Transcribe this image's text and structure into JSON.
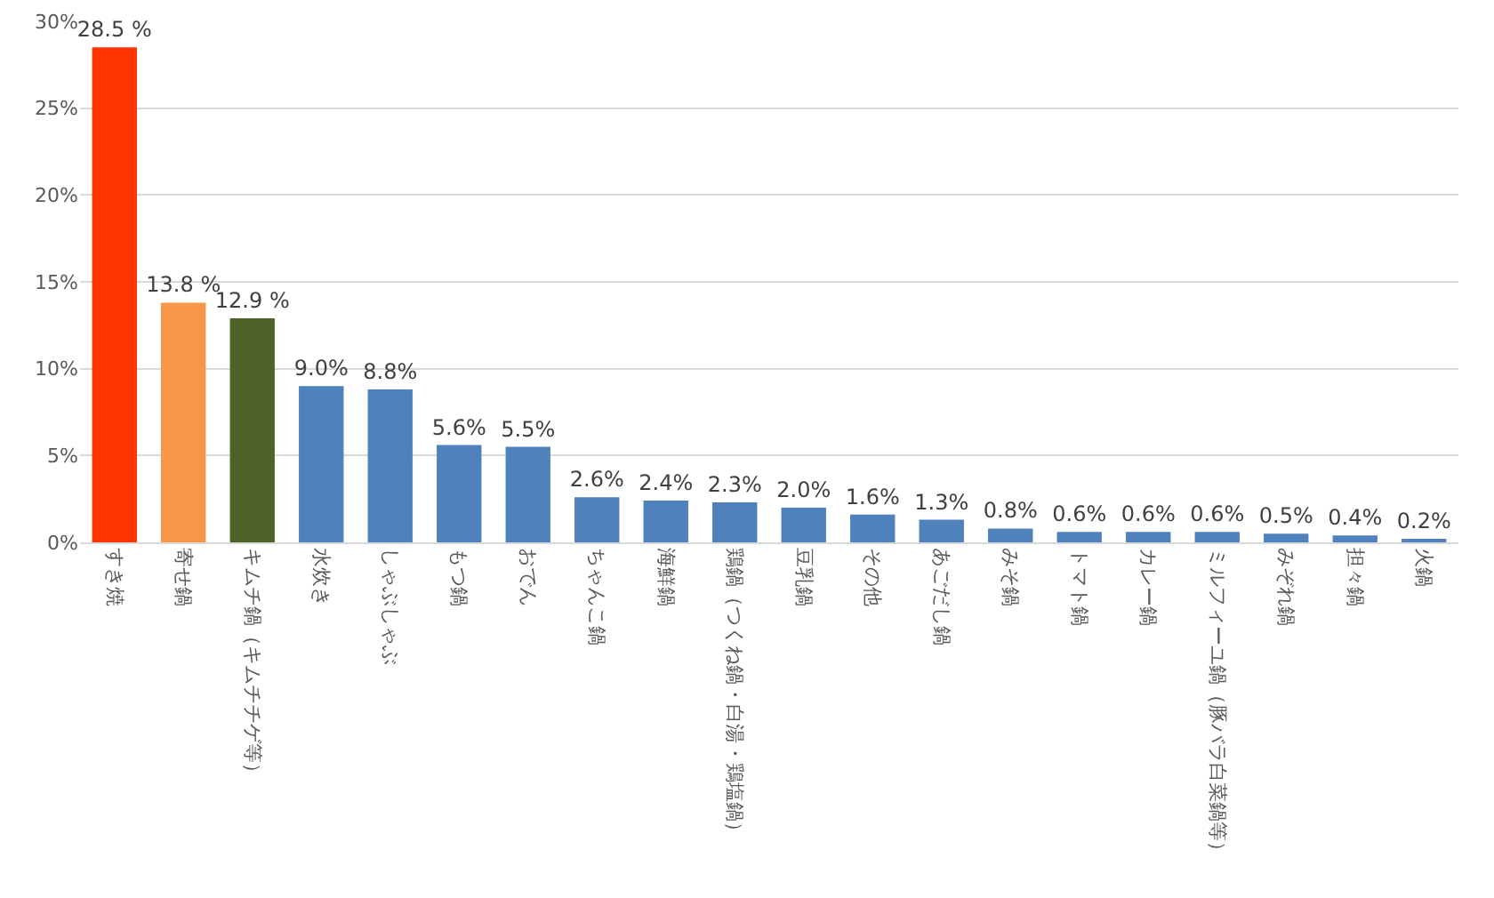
{
  "chart_data": {
    "type": "bar",
    "categories": [
      "すき焼",
      "寄せ鍋",
      "キムチ鍋（キムチチゲ等）",
      "水炊き",
      "しゃぶしゃぶ",
      "もつ鍋",
      "おでん",
      "ちゃんこ鍋",
      "海鮮鍋",
      "鶏鍋（つくね鍋・白湯・鶏塩鍋）",
      "豆乳鍋",
      "その他",
      "あごだし鍋",
      "みそ鍋",
      "トマト鍋",
      "カレー鍋",
      "ミルフィーユ鍋（豚バラ白菜鍋等）",
      "みぞれ鍋",
      "担々鍋",
      "火鍋"
    ],
    "values": [
      28.5,
      13.8,
      12.9,
      9.0,
      8.8,
      5.6,
      5.5,
      2.6,
      2.4,
      2.3,
      2.0,
      1.6,
      1.3,
      0.8,
      0.6,
      0.6,
      0.6,
      0.5,
      0.4,
      0.2
    ],
    "colors": [
      "#ff3300",
      "#f79646",
      "#4f6228",
      "#4f81bd",
      "#4f81bd",
      "#4f81bd",
      "#4f81bd",
      "#4f81bd",
      "#4f81bd",
      "#4f81bd",
      "#4f81bd",
      "#4f81bd",
      "#4f81bd",
      "#4f81bd",
      "#4f81bd",
      "#4f81bd",
      "#4f81bd",
      "#4f81bd",
      "#4f81bd",
      "#4f81bd"
    ],
    "value_labels": [
      "28.5 %",
      "13.8 %",
      "12.9 %",
      "9.0%",
      "8.8%",
      "5.6%",
      "5.5%",
      "2.6%",
      "2.4%",
      "2.3%",
      "2.0%",
      "1.6%",
      "1.3%",
      "0.8%",
      "0.6%",
      "0.6%",
      "0.6%",
      "0.5%",
      "0.4%",
      "0.2%"
    ],
    "ylim": [
      0,
      30
    ],
    "yticks": [
      {
        "value": 0,
        "label": "0%"
      },
      {
        "value": 5,
        "label": "5%"
      },
      {
        "value": 10,
        "label": "10%"
      },
      {
        "value": 15,
        "label": "15%"
      },
      {
        "value": 20,
        "label": "20%"
      },
      {
        "value": 25,
        "label": "25%"
      },
      {
        "value": 30,
        "label": "30%"
      }
    ],
    "grid": "y"
  }
}
